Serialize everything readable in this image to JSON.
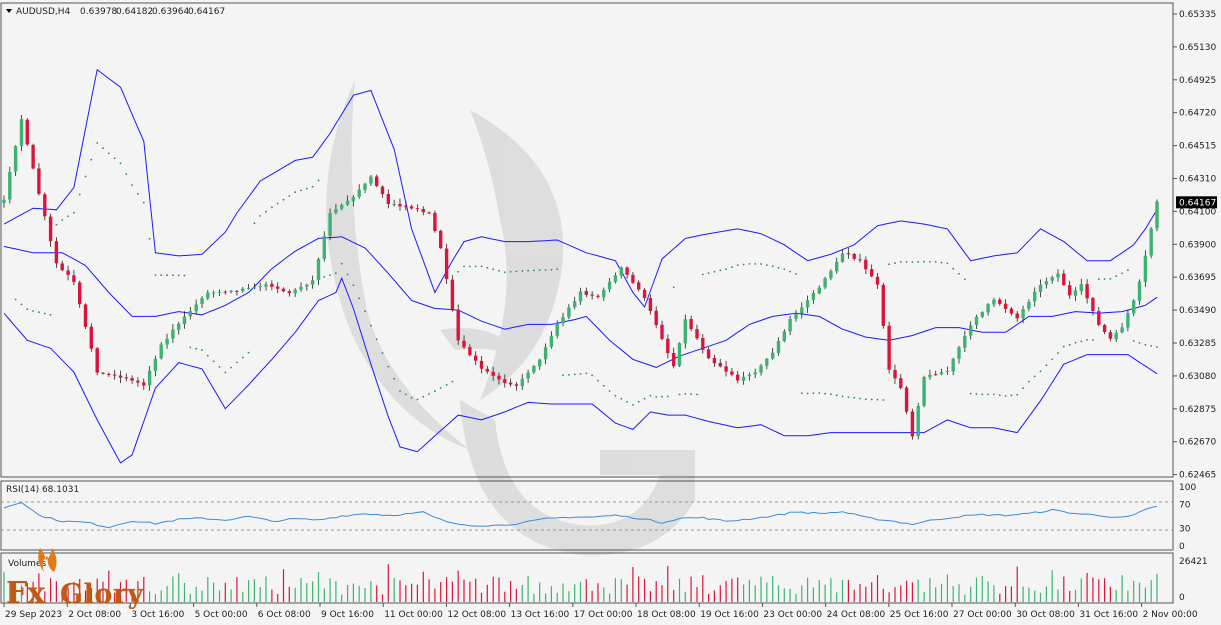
{
  "header": {
    "symbol": "AUDUSD,H4",
    "open": "0.63978",
    "high": "0.64182",
    "low": "0.63964",
    "close": "0.64167"
  },
  "brand": {
    "text_fx": "Fx",
    "text_glory": "Glory",
    "color": "#c05a12"
  },
  "colors": {
    "bull": "#3cb371",
    "bear": "#dc143c",
    "bands": "#1a1aff",
    "sar": "#2e8b57",
    "rsi": "#3d8bdc",
    "current_price_bg": "#000000"
  },
  "chart_data": [
    {
      "type": "candlestick",
      "title": "AUDUSD,H4",
      "price_axis": [
        "0.65335",
        "0.65130",
        "0.64925",
        "0.64720",
        "0.64515",
        "0.64310",
        "0.64100",
        "0.63900",
        "0.63695",
        "0.63490",
        "0.63285",
        "0.63080",
        "0.62875",
        "0.62670",
        "0.62465"
      ],
      "ylim": [
        0.6246,
        0.6535
      ],
      "current_price": "0.64167",
      "time_axis": [
        "29 Sep 2023",
        "2 Oct 08:00",
        "3 Oct 16:00",
        "5 Oct 00:00",
        "6 Oct 08:00",
        "9 Oct 16:00",
        "11 Oct 00:00",
        "12 Oct 08:00",
        "13 Oct 16:00",
        "17 Oct 00:00",
        "18 Oct 08:00",
        "19 Oct 16:00",
        "23 Oct 00:00",
        "24 Oct 08:00",
        "25 Oct 16:00",
        "27 Oct 00:00",
        "30 Oct 08:00",
        "31 Oct 16:00",
        "2 Nov 00:00"
      ],
      "indicators": [
        "Bollinger Bands (blue)",
        "Parabolic SAR (green dots)"
      ],
      "close_anchors": [
        [
          0,
          0.6418
        ],
        [
          3,
          0.6469
        ],
        [
          6,
          0.6422
        ],
        [
          9,
          0.6378
        ],
        [
          12,
          0.6367
        ],
        [
          16,
          0.631
        ],
        [
          20,
          0.6307
        ],
        [
          24,
          0.6302
        ],
        [
          27,
          0.6327
        ],
        [
          31,
          0.6345
        ],
        [
          35,
          0.636
        ],
        [
          40,
          0.6361
        ],
        [
          45,
          0.6365
        ],
        [
          49,
          0.636
        ],
        [
          53,
          0.6367
        ],
        [
          56,
          0.641
        ],
        [
          60,
          0.642
        ],
        [
          63,
          0.6433
        ],
        [
          66,
          0.6416
        ],
        [
          70,
          0.6413
        ],
        [
          73,
          0.641
        ],
        [
          75,
          0.6388
        ],
        [
          78,
          0.633
        ],
        [
          82,
          0.6312
        ],
        [
          86,
          0.6303
        ],
        [
          88,
          0.6302
        ],
        [
          92,
          0.6318
        ],
        [
          95,
          0.634
        ],
        [
          99,
          0.636
        ],
        [
          102,
          0.6357
        ],
        [
          106,
          0.6376
        ],
        [
          110,
          0.6357
        ],
        [
          112,
          0.634
        ],
        [
          115,
          0.6313
        ],
        [
          117,
          0.6343
        ],
        [
          121,
          0.6318
        ],
        [
          126,
          0.6305
        ],
        [
          129,
          0.631
        ],
        [
          132,
          0.6322
        ],
        [
          135,
          0.6343
        ],
        [
          140,
          0.6363
        ],
        [
          144,
          0.6385
        ],
        [
          147,
          0.638
        ],
        [
          150,
          0.6365
        ],
        [
          152,
          0.6312
        ],
        [
          154,
          0.63
        ],
        [
          156,
          0.627
        ],
        [
          158,
          0.6307
        ],
        [
          162,
          0.6311
        ],
        [
          166,
          0.634
        ],
        [
          170,
          0.6356
        ],
        [
          174,
          0.6344
        ],
        [
          178,
          0.6365
        ],
        [
          181,
          0.6372
        ],
        [
          183,
          0.6358
        ],
        [
          185,
          0.6365
        ],
        [
          188,
          0.634
        ],
        [
          190,
          0.6331
        ],
        [
          192,
          0.6338
        ],
        [
          194,
          0.6355
        ],
        [
          195,
          0.6367
        ],
        [
          197,
          0.64
        ],
        [
          198,
          0.6417
        ]
      ],
      "bollinger_upper_anchors": [
        [
          0,
          0.6403
        ],
        [
          5,
          0.6413
        ],
        [
          9,
          0.6412
        ],
        [
          12,
          0.6426
        ],
        [
          16,
          0.65
        ],
        [
          20,
          0.6489
        ],
        [
          24,
          0.6455
        ],
        [
          26,
          0.6385
        ],
        [
          30,
          0.6383
        ],
        [
          34,
          0.6384
        ],
        [
          38,
          0.6398
        ],
        [
          40,
          0.641
        ],
        [
          44,
          0.643
        ],
        [
          50,
          0.6443
        ],
        [
          53,
          0.6445
        ],
        [
          56,
          0.646
        ],
        [
          60,
          0.6484
        ],
        [
          63,
          0.6487
        ],
        [
          67,
          0.645
        ],
        [
          70,
          0.64
        ],
        [
          74,
          0.636
        ],
        [
          77,
          0.638
        ],
        [
          79,
          0.6392
        ],
        [
          82,
          0.6395
        ],
        [
          86,
          0.6392
        ],
        [
          90,
          0.6392
        ],
        [
          95,
          0.6393
        ],
        [
          100,
          0.6385
        ],
        [
          105,
          0.638
        ],
        [
          108,
          0.636
        ],
        [
          110,
          0.6351
        ],
        [
          113,
          0.6381
        ],
        [
          117,
          0.6394
        ],
        [
          121,
          0.6397
        ],
        [
          126,
          0.64
        ],
        [
          130,
          0.6397
        ],
        [
          134,
          0.639
        ],
        [
          138,
          0.638
        ],
        [
          142,
          0.6384
        ],
        [
          146,
          0.639
        ],
        [
          150,
          0.6402
        ],
        [
          154,
          0.6405
        ],
        [
          158,
          0.6403
        ],
        [
          162,
          0.64
        ],
        [
          166,
          0.638
        ],
        [
          170,
          0.6383
        ],
        [
          174,
          0.6385
        ],
        [
          178,
          0.64
        ],
        [
          182,
          0.6392
        ],
        [
          186,
          0.638
        ],
        [
          190,
          0.638
        ],
        [
          194,
          0.639
        ],
        [
          196,
          0.64
        ],
        [
          198,
          0.6412
        ]
      ],
      "bollinger_lower_anchors": [
        [
          0,
          0.6347
        ],
        [
          4,
          0.633
        ],
        [
          8,
          0.6325
        ],
        [
          12,
          0.631
        ],
        [
          16,
          0.628
        ],
        [
          20,
          0.6253
        ],
        [
          22,
          0.6258
        ],
        [
          26,
          0.63
        ],
        [
          30,
          0.6316
        ],
        [
          34,
          0.6312
        ],
        [
          38,
          0.6287
        ],
        [
          42,
          0.6302
        ],
        [
          46,
          0.6318
        ],
        [
          50,
          0.6335
        ],
        [
          54,
          0.6355
        ],
        [
          57,
          0.636
        ],
        [
          58,
          0.6369
        ],
        [
          60,
          0.635
        ],
        [
          63,
          0.6315
        ],
        [
          66,
          0.6282
        ],
        [
          68,
          0.6263
        ],
        [
          71,
          0.626
        ],
        [
          74,
          0.627
        ],
        [
          78,
          0.6283
        ],
        [
          82,
          0.628
        ],
        [
          86,
          0.6285
        ],
        [
          90,
          0.6291
        ],
        [
          94,
          0.629
        ],
        [
          98,
          0.629
        ],
        [
          101,
          0.629
        ],
        [
          105,
          0.6278
        ],
        [
          108,
          0.6274
        ],
        [
          111,
          0.6285
        ],
        [
          114,
          0.6283
        ],
        [
          117,
          0.6283
        ],
        [
          121,
          0.6279
        ],
        [
          126,
          0.6275
        ],
        [
          130,
          0.6277
        ],
        [
          134,
          0.627
        ],
        [
          138,
          0.627
        ],
        [
          142,
          0.6272
        ],
        [
          146,
          0.6272
        ],
        [
          150,
          0.6272
        ],
        [
          154,
          0.6272
        ],
        [
          158,
          0.6272
        ],
        [
          162,
          0.628
        ],
        [
          166,
          0.6275
        ],
        [
          170,
          0.6275
        ],
        [
          174,
          0.6272
        ],
        [
          178,
          0.6292
        ],
        [
          182,
          0.6315
        ],
        [
          186,
          0.6321
        ],
        [
          190,
          0.6321
        ],
        [
          193,
          0.6321
        ],
        [
          198,
          0.6309
        ]
      ],
      "bollinger_middle_anchors": [
        [
          0,
          0.6389
        ],
        [
          5,
          0.6385
        ],
        [
          10,
          0.6385
        ],
        [
          14,
          0.6377
        ],
        [
          18,
          0.636
        ],
        [
          22,
          0.6345
        ],
        [
          26,
          0.6345
        ],
        [
          30,
          0.6348
        ],
        [
          34,
          0.6346
        ],
        [
          38,
          0.6352
        ],
        [
          42,
          0.636
        ],
        [
          46,
          0.6375
        ],
        [
          50,
          0.6386
        ],
        [
          54,
          0.6394
        ],
        [
          58,
          0.6395
        ],
        [
          62,
          0.6388
        ],
        [
          66,
          0.6372
        ],
        [
          70,
          0.6355
        ],
        [
          74,
          0.635
        ],
        [
          78,
          0.6349
        ],
        [
          82,
          0.6342
        ],
        [
          86,
          0.6337
        ],
        [
          90,
          0.634
        ],
        [
          94,
          0.634
        ],
        [
          98,
          0.6343
        ],
        [
          100,
          0.6345
        ],
        [
          104,
          0.633
        ],
        [
          108,
          0.6318
        ],
        [
          112,
          0.6313
        ],
        [
          116,
          0.632
        ],
        [
          120,
          0.6325
        ],
        [
          124,
          0.633
        ],
        [
          128,
          0.634
        ],
        [
          132,
          0.6345
        ],
        [
          136,
          0.6347
        ],
        [
          140,
          0.6345
        ],
        [
          144,
          0.6337
        ],
        [
          148,
          0.6332
        ],
        [
          152,
          0.633
        ],
        [
          156,
          0.6333
        ],
        [
          160,
          0.6338
        ],
        [
          164,
          0.6338
        ],
        [
          168,
          0.6335
        ],
        [
          172,
          0.6335
        ],
        [
          176,
          0.6345
        ],
        [
          180,
          0.6345
        ],
        [
          184,
          0.6348
        ],
        [
          188,
          0.6347
        ],
        [
          192,
          0.6348
        ],
        [
          196,
          0.6352
        ],
        [
          198,
          0.6357
        ]
      ]
    },
    {
      "type": "line",
      "title": "RSI(14) 68.1031",
      "levels": [
        "100",
        "70",
        "30",
        "0"
      ],
      "ylim": [
        0,
        100
      ],
      "rsi_anchors": [
        [
          0,
          65
        ],
        [
          3,
          75
        ],
        [
          6,
          52
        ],
        [
          10,
          42
        ],
        [
          14,
          40
        ],
        [
          18,
          32
        ],
        [
          22,
          43
        ],
        [
          26,
          38
        ],
        [
          30,
          45
        ],
        [
          34,
          47
        ],
        [
          38,
          44
        ],
        [
          42,
          50
        ],
        [
          46,
          42
        ],
        [
          50,
          46
        ],
        [
          54,
          44
        ],
        [
          58,
          51
        ],
        [
          62,
          55
        ],
        [
          66,
          52
        ],
        [
          70,
          55
        ],
        [
          72,
          57
        ],
        [
          74,
          48
        ],
        [
          77,
          38
        ],
        [
          81,
          35
        ],
        [
          85,
          35
        ],
        [
          89,
          39
        ],
        [
          93,
          46
        ],
        [
          97,
          49
        ],
        [
          101,
          49
        ],
        [
          105,
          52
        ],
        [
          109,
          47
        ],
        [
          113,
          40
        ],
        [
          116,
          47
        ],
        [
          120,
          48
        ],
        [
          124,
          42
        ],
        [
          128,
          46
        ],
        [
          132,
          51
        ],
        [
          136,
          58
        ],
        [
          140,
          55
        ],
        [
          144,
          58
        ],
        [
          148,
          48
        ],
        [
          152,
          43
        ],
        [
          156,
          37
        ],
        [
          160,
          45
        ],
        [
          164,
          50
        ],
        [
          168,
          53
        ],
        [
          172,
          52
        ],
        [
          176,
          55
        ],
        [
          180,
          61
        ],
        [
          184,
          55
        ],
        [
          188,
          52
        ],
        [
          192,
          48
        ],
        [
          194,
          52
        ],
        [
          196,
          61
        ],
        [
          198,
          68
        ]
      ]
    },
    {
      "type": "bar",
      "title": "Volumes",
      "ticks": [
        "26421",
        "0"
      ],
      "ylim": [
        0,
        26421
      ]
    }
  ]
}
